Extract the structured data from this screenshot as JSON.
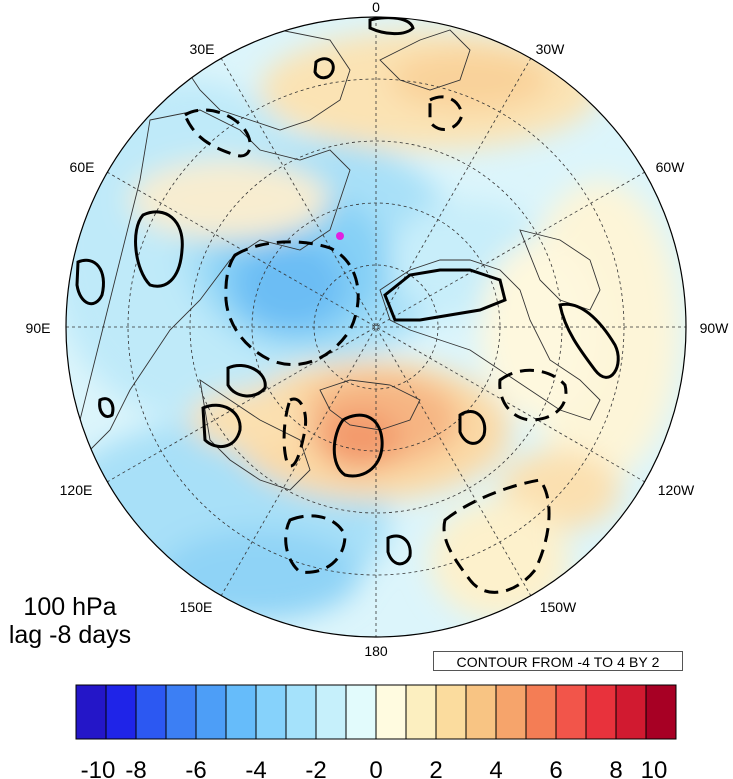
{
  "title": {
    "level": "100 hPa",
    "lag": "lag -8 days"
  },
  "contour_info": "CONTOUR FROM -4 TO 4 BY 2",
  "longitude_labels": {
    "top": "0",
    "top_left": "30E",
    "top_right": "30W",
    "upper_left": "60E",
    "upper_right": "60W",
    "left": "90E",
    "right": "90W",
    "lower_left": "120E",
    "lower_right": "120W",
    "bottom_left": "150E",
    "bottom_right": "150W",
    "bottom": "180"
  },
  "colorbar": {
    "colors": [
      "#2416c8",
      "#1f24e8",
      "#2c58f2",
      "#3c7ff4",
      "#4d9ef7",
      "#66bcfa",
      "#86d2fb",
      "#a5e2fb",
      "#c6f0fb",
      "#e2fbfc",
      "#fffbe0",
      "#fcefc0",
      "#fbdc9e",
      "#f8c483",
      "#f6a46b",
      "#f47d55",
      "#f2554a",
      "#e8323c",
      "#d11a30",
      "#a70024"
    ],
    "tick_labels": [
      "-10",
      "-8",
      "-6",
      "-4",
      "-2",
      "0",
      "2",
      "4",
      "6",
      "8",
      "10"
    ]
  },
  "marker_color": "#e020e0"
}
